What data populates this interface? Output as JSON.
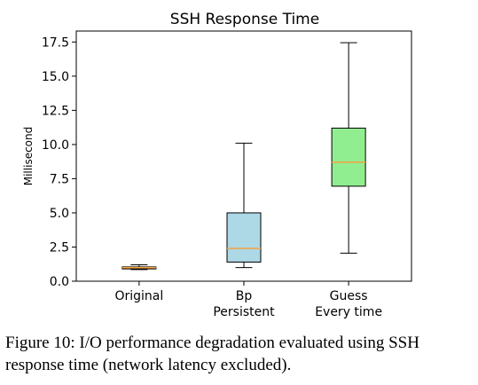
{
  "chart_data": {
    "type": "boxplot",
    "title": "SSH Response Time",
    "ylabel": "Millisecond",
    "xlabel": "",
    "ylim": [
      0,
      18.3
    ],
    "yticks": [
      "0.0",
      "2.5",
      "5.0",
      "7.5",
      "10.0",
      "12.5",
      "15.0",
      "17.5"
    ],
    "grid": false,
    "categories": [
      {
        "lines": [
          "Original"
        ]
      },
      {
        "lines": [
          "Bp",
          "Persistent"
        ]
      },
      {
        "lines": [
          "Guess",
          "Every time"
        ]
      }
    ],
    "boxes": [
      {
        "whisker_low": 0.85,
        "q1": 0.9,
        "median": 1.0,
        "q3": 1.05,
        "whisker_high": 1.2,
        "fill": "#cd853f",
        "median_color": "#f5a142"
      },
      {
        "whisker_low": 1.0,
        "q1": 1.4,
        "median": 2.4,
        "q3": 5.0,
        "whisker_high": 10.1,
        "fill": "#add8e6",
        "median_color": "#f5a142"
      },
      {
        "whisker_low": 2.05,
        "q1": 6.95,
        "median": 8.7,
        "q3": 11.2,
        "whisker_high": 17.45,
        "fill": "#90ee90",
        "median_color": "#f5a142"
      }
    ]
  },
  "caption": "Figure 10: I/O performance degradation evaluated using SSH response time (network latency excluded)."
}
